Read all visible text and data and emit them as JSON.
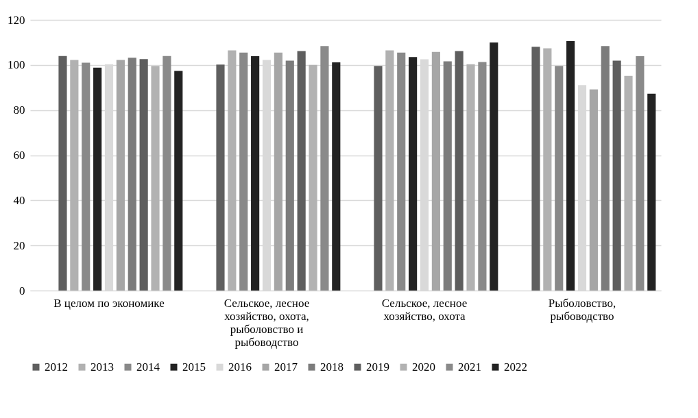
{
  "chart_data": {
    "type": "bar",
    "categories": [
      "В целом по экономике",
      "Сельское, лесное хозяйство, охота, рыболовство и рыбоводство",
      "Сельское, лесное хозяйство, охота",
      "Рыболовство, рыбоводство"
    ],
    "series": [
      {
        "name": "2012",
        "color": "#5f5f5f",
        "values": [
          104.0,
          100.2,
          99.6,
          108.1
        ]
      },
      {
        "name": "2013",
        "color": "#b1b1b1",
        "values": [
          102.2,
          106.5,
          106.5,
          107.4
        ]
      },
      {
        "name": "2014",
        "color": "#898989",
        "values": [
          101.0,
          105.5,
          105.5,
          99.6
        ]
      },
      {
        "name": "2015",
        "color": "#222222",
        "values": [
          98.8,
          103.9,
          103.5,
          110.6
        ]
      },
      {
        "name": "2016",
        "color": "#d9d9d9",
        "values": [
          100.3,
          102.2,
          102.5,
          91.1
        ]
      },
      {
        "name": "2017",
        "color": "#a6a6a6",
        "values": [
          102.2,
          105.5,
          105.8,
          89.2
        ]
      },
      {
        "name": "2018",
        "color": "#7c7c7c",
        "values": [
          103.2,
          101.9,
          101.6,
          108.4
        ]
      },
      {
        "name": "2019",
        "color": "#5e5e5e",
        "values": [
          102.6,
          106.2,
          106.2,
          101.9
        ]
      },
      {
        "name": "2020",
        "color": "#b2b2b2",
        "values": [
          99.6,
          100.0,
          100.3,
          95.2
        ]
      },
      {
        "name": "2021",
        "color": "#8a8a8a",
        "values": [
          104.0,
          108.4,
          101.3,
          103.9
        ]
      },
      {
        "name": "2022",
        "color": "#232323",
        "values": [
          97.4,
          101.2,
          110.0,
          87.3
        ]
      }
    ],
    "ylim": [
      0,
      120
    ],
    "yticks": [
      0,
      20,
      40,
      60,
      80,
      100,
      120
    ],
    "grid": "y",
    "legend": "bottom"
  }
}
